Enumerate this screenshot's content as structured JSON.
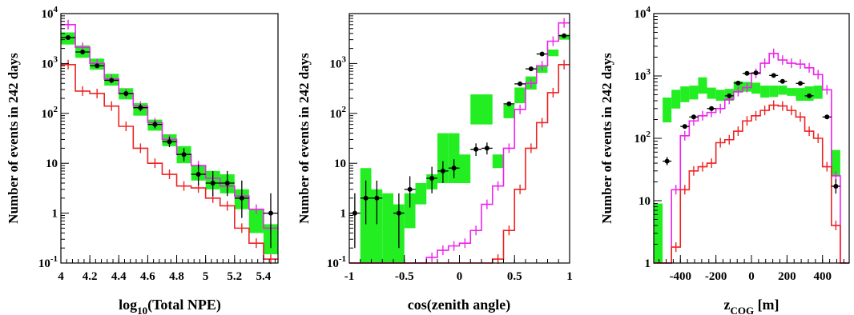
{
  "colors": {
    "band": "#22ee22",
    "magenta": "#ee22ee",
    "red": "#ee2222",
    "data": "#000000"
  },
  "chart_data": [
    {
      "type": "histogram",
      "log_y": true,
      "xlabel_main": "log",
      "xlabel_sub": "10",
      "xlabel_tail": "(Total NPE)",
      "ylabel": "Number of events in 242 days",
      "xlim": [
        4,
        5.5
      ],
      "ylim": [
        0.1,
        10000
      ],
      "xticks": [
        {
          "v": 4,
          "label": "4"
        },
        {
          "v": 4.2,
          "label": "4.2"
        },
        {
          "v": 4.4,
          "label": "4.4"
        },
        {
          "v": 4.6,
          "label": "4.6"
        },
        {
          "v": 4.8,
          "label": "4.8"
        },
        {
          "v": 5,
          "label": "5"
        },
        {
          "v": 5.2,
          "label": "5.2"
        },
        {
          "v": 5.4,
          "label": "5.4"
        }
      ],
      "yticks": [
        {
          "v": 0.1,
          "base": "10",
          "exp": "-1"
        },
        {
          "v": 1,
          "base": "1",
          "exp": ""
        },
        {
          "v": 10,
          "base": "10",
          "exp": ""
        },
        {
          "v": 100,
          "base": "10",
          "exp": "2"
        },
        {
          "v": 1000,
          "base": "10",
          "exp": "3"
        },
        {
          "v": 10000,
          "base": "10",
          "exp": "4"
        }
      ],
      "edges": [
        4.0,
        4.1,
        4.2,
        4.3,
        4.4,
        4.5,
        4.6,
        4.7,
        4.8,
        4.9,
        5.0,
        5.1,
        5.2,
        5.3,
        5.4,
        5.5
      ],
      "band": [
        [
          2400,
          4200
        ],
        [
          1300,
          2300
        ],
        [
          750,
          1250
        ],
        [
          360,
          620
        ],
        [
          190,
          320
        ],
        [
          90,
          160
        ],
        [
          45,
          75
        ],
        [
          22,
          38
        ],
        [
          10,
          22
        ],
        [
          4.5,
          9
        ],
        [
          3,
          7
        ],
        [
          2.5,
          6
        ],
        [
          1.2,
          3
        ],
        [
          0.4,
          1.2
        ],
        [
          0.15,
          0.6
        ]
      ],
      "magenta": [
        6000,
        2100,
        1000,
        490,
        250,
        140,
        65,
        30,
        15,
        9,
        5,
        3.5,
        2.2,
        1.2,
        0.5
      ],
      "red": [
        950,
        280,
        250,
        140,
        55,
        20,
        10,
        6,
        3.5,
        3.2,
        2,
        1.4,
        0.5,
        0.25,
        0.12
      ],
      "points": [
        {
          "x": 4.05,
          "y": 3300,
          "lo": 3100,
          "hi": 3500
        },
        {
          "x": 4.15,
          "y": 1700,
          "lo": 1550,
          "hi": 1850
        },
        {
          "x": 4.25,
          "y": 900,
          "lo": 820,
          "hi": 990
        },
        {
          "x": 4.35,
          "y": 460,
          "lo": 410,
          "hi": 510
        },
        {
          "x": 4.45,
          "y": 250,
          "lo": 220,
          "hi": 285
        },
        {
          "x": 4.55,
          "y": 130,
          "lo": 110,
          "hi": 155
        },
        {
          "x": 4.65,
          "y": 60,
          "lo": 50,
          "hi": 72
        },
        {
          "x": 4.75,
          "y": 27,
          "lo": 21,
          "hi": 34
        },
        {
          "x": 4.85,
          "y": 15,
          "lo": 11,
          "hi": 20
        },
        {
          "x": 4.95,
          "y": 6,
          "lo": 3.6,
          "hi": 9.5
        },
        {
          "x": 5.05,
          "y": 4,
          "lo": 2.2,
          "hi": 7
        },
        {
          "x": 5.15,
          "y": 4,
          "lo": 2.2,
          "hi": 7
        },
        {
          "x": 5.25,
          "y": 2,
          "lo": 0.8,
          "hi": 4.5
        },
        {
          "x": 5.45,
          "y": 1,
          "lo": 0.2,
          "hi": 2.5
        }
      ]
    },
    {
      "type": "histogram",
      "log_y": true,
      "xlabel_main": "cos(zenith angle)",
      "xlabel_sub": "",
      "xlabel_tail": "",
      "ylabel": "Number of events in 242 days",
      "xlim": [
        -1,
        1
      ],
      "ylim": [
        0.1,
        10000
      ],
      "xticks": [
        {
          "v": -1,
          "label": "-1"
        },
        {
          "v": -0.5,
          "label": "-0.5"
        },
        {
          "v": 0,
          "label": "0"
        },
        {
          "v": 0.5,
          "label": "0.5"
        },
        {
          "v": 1,
          "label": "1"
        }
      ],
      "yticks": [
        {
          "v": 0.1,
          "base": "10",
          "exp": "-1"
        },
        {
          "v": 1,
          "base": "1",
          "exp": ""
        },
        {
          "v": 10,
          "base": "10",
          "exp": ""
        },
        {
          "v": 100,
          "base": "10",
          "exp": "2"
        },
        {
          "v": 1000,
          "base": "10",
          "exp": "3"
        }
      ],
      "edges": [
        -1.0,
        -0.9,
        -0.8,
        -0.7,
        -0.6,
        -0.5,
        -0.4,
        -0.3,
        -0.2,
        -0.1,
        0.0,
        0.1,
        0.2,
        0.3,
        0.4,
        0.5,
        0.6,
        0.7,
        0.8,
        0.9,
        1.0
      ],
      "band": [
        [
          0.1,
          0.1
        ],
        [
          0.1,
          8
        ],
        [
          0.1,
          3
        ],
        [
          0.1,
          2.5
        ],
        [
          0.1,
          1.5
        ],
        [
          0.5,
          2.5
        ],
        [
          1.5,
          4
        ],
        [
          3,
          6
        ],
        [
          4,
          40
        ],
        [
          4,
          40
        ],
        [
          4,
          15
        ],
        [
          60,
          240
        ],
        [
          60,
          240
        ],
        [
          8,
          15
        ],
        [
          80,
          150
        ],
        [
          160,
          330
        ],
        [
          300,
          550
        ],
        [
          650,
          900
        ],
        [
          1400,
          1900
        ],
        [
          3000,
          3800
        ]
      ],
      "magenta": [
        0.1,
        0.1,
        0.1,
        0.1,
        0.1,
        0.1,
        0.1,
        0.13,
        0.18,
        0.22,
        0.25,
        0.45,
        1.5,
        3.5,
        20,
        120,
        400,
        900,
        2800,
        6500
      ],
      "red": [
        0.1,
        0.1,
        0.1,
        0.1,
        0.1,
        0.1,
        0.1,
        0.1,
        0.1,
        0.1,
        0.1,
        0.1,
        0.1,
        0.12,
        0.45,
        3,
        20,
        65,
        260,
        950
      ],
      "points": [
        {
          "x": -0.95,
          "y": 1,
          "lo": 0.2,
          "hi": 2.5
        },
        {
          "x": -0.85,
          "y": 2,
          "lo": 0.6,
          "hi": 4.5
        },
        {
          "x": -0.75,
          "y": 2,
          "lo": 0.6,
          "hi": 4.5
        },
        {
          "x": -0.55,
          "y": 1,
          "lo": 0.2,
          "hi": 2.5
        },
        {
          "x": -0.45,
          "y": 3,
          "lo": 1.3,
          "hi": 5.5
        },
        {
          "x": -0.25,
          "y": 5,
          "lo": 2.5,
          "hi": 8.5
        },
        {
          "x": -0.15,
          "y": 7,
          "lo": 4,
          "hi": 11
        },
        {
          "x": -0.05,
          "y": 8,
          "lo": 5,
          "hi": 12
        },
        {
          "x": 0.15,
          "y": 19,
          "lo": 14,
          "hi": 25
        },
        {
          "x": 0.25,
          "y": 20,
          "lo": 15,
          "hi": 26
        },
        {
          "x": 0.45,
          "y": 155,
          "lo": 140,
          "hi": 170
        },
        {
          "x": 0.55,
          "y": 390,
          "lo": 370,
          "hi": 410
        },
        {
          "x": 0.65,
          "y": 780,
          "lo": 750,
          "hi": 810
        },
        {
          "x": 0.75,
          "y": 1550,
          "lo": 1500,
          "hi": 1600
        },
        {
          "x": 0.95,
          "y": 3600,
          "lo": 3500,
          "hi": 3700
        }
      ]
    },
    {
      "type": "histogram",
      "log_y": true,
      "xlabel_main": "z",
      "xlabel_sub": "COG",
      "xlabel_tail": " [m]",
      "ylabel": "Number of events in 242 days",
      "xlim": [
        -550,
        550
      ],
      "ylim": [
        1,
        10000
      ],
      "xticks": [
        {
          "v": -400,
          "label": "-400"
        },
        {
          "v": -200,
          "label": "-200"
        },
        {
          "v": 0,
          "label": "0"
        },
        {
          "v": 200,
          "label": "200"
        },
        {
          "v": 400,
          "label": "400"
        }
      ],
      "yticks": [
        {
          "v": 1,
          "base": "1",
          "exp": ""
        },
        {
          "v": 10,
          "base": "10",
          "exp": ""
        },
        {
          "v": 100,
          "base": "10",
          "exp": "2"
        },
        {
          "v": 1000,
          "base": "10",
          "exp": "3"
        },
        {
          "v": 10000,
          "base": "10",
          "exp": "4"
        }
      ],
      "edges": [
        -550,
        -500,
        -450,
        -400,
        -350,
        -300,
        -250,
        -200,
        -150,
        -100,
        -50,
        0,
        50,
        100,
        150,
        200,
        250,
        300,
        350,
        400,
        450,
        500,
        550
      ],
      "band": [
        [
          1,
          9
        ],
        [
          180,
          450
        ],
        [
          300,
          600
        ],
        [
          380,
          680
        ],
        [
          420,
          700
        ],
        [
          520,
          950
        ],
        [
          430,
          650
        ],
        [
          400,
          600
        ],
        [
          400,
          620
        ],
        [
          540,
          820
        ],
        [
          560,
          800
        ],
        [
          520,
          780
        ],
        [
          450,
          700
        ],
        [
          460,
          700
        ],
        [
          500,
          700
        ],
        [
          480,
          640
        ],
        [
          400,
          640
        ],
        [
          400,
          680
        ],
        [
          430,
          700
        ],
        [
          1,
          1
        ],
        [
          25,
          65
        ],
        [
          1,
          1
        ]
      ],
      "magenta": [
        1,
        1,
        15,
        110,
        190,
        230,
        260,
        300,
        420,
        560,
        650,
        1100,
        1600,
        2300,
        1800,
        1600,
        1550,
        1350,
        1050,
        600,
        25,
        1
      ],
      "red": [
        1,
        1,
        1.8,
        15,
        30,
        35,
        40,
        85,
        95,
        130,
        190,
        230,
        280,
        340,
        330,
        280,
        220,
        130,
        100,
        35,
        4,
        1
      ],
      "points": [
        {
          "x": -475,
          "y": 43,
          "lo": 37,
          "hi": 50
        },
        {
          "x": -375,
          "y": 155,
          "lo": 145,
          "hi": 165
        },
        {
          "x": -325,
          "y": 220,
          "lo": 210,
          "hi": 230
        },
        {
          "x": -225,
          "y": 300,
          "lo": 290,
          "hi": 310
        },
        {
          "x": -125,
          "y": 480,
          "lo": 465,
          "hi": 495
        },
        {
          "x": -75,
          "y": 770,
          "lo": 750,
          "hi": 790
        },
        {
          "x": -25,
          "y": 1100,
          "lo": 1080,
          "hi": 1120
        },
        {
          "x": 25,
          "y": 1120,
          "lo": 1100,
          "hi": 1140
        },
        {
          "x": 125,
          "y": 1020,
          "lo": 1000,
          "hi": 1040
        },
        {
          "x": 175,
          "y": 820,
          "lo": 800,
          "hi": 840
        },
        {
          "x": 275,
          "y": 760,
          "lo": 740,
          "hi": 780
        },
        {
          "x": 325,
          "y": 480,
          "lo": 465,
          "hi": 495
        },
        {
          "x": 425,
          "y": 220,
          "lo": 210,
          "hi": 230
        },
        {
          "x": 475,
          "y": 17,
          "lo": 13,
          "hi": 22
        }
      ]
    }
  ]
}
